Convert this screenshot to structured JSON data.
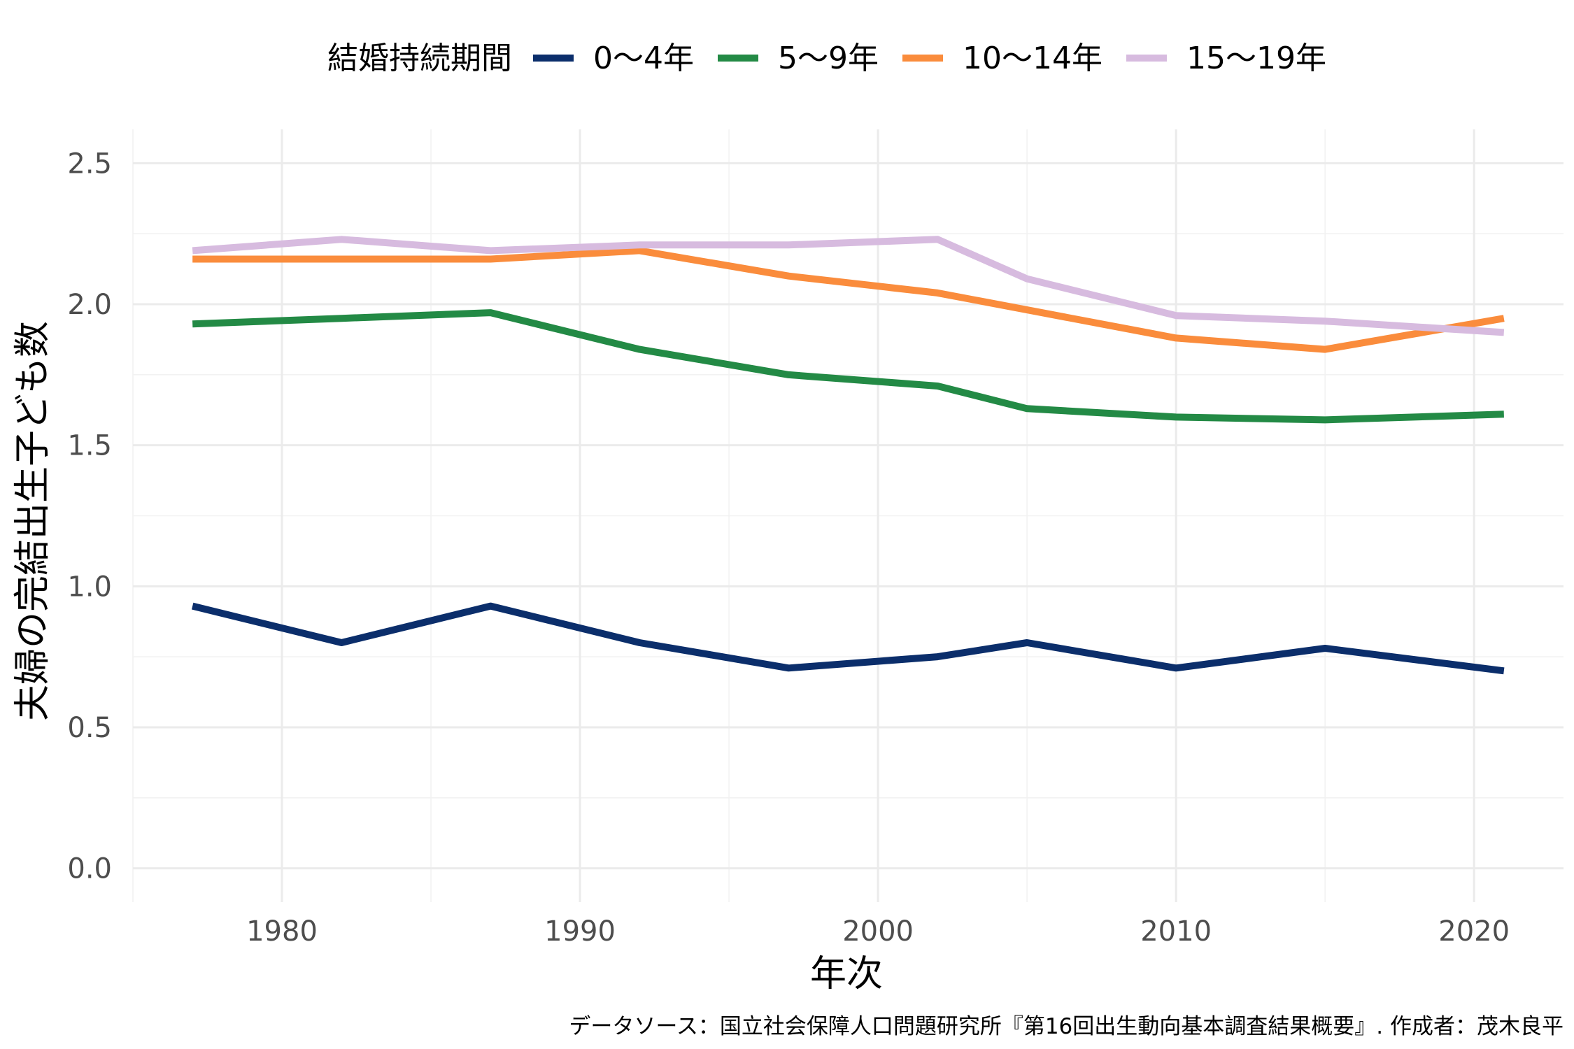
{
  "chart_data": {
    "type": "line",
    "xlabel": "年次",
    "ylabel": "夫婦の完結出生子ども数",
    "caption": "データソース：国立社会保障人口問題研究所『第16回出生動向基本調査結果概要』. 作成者：茂木良平",
    "legend": {
      "title": "結婚持続期間",
      "position": "top"
    },
    "xlim": [
      1975,
      2023
    ],
    "ylim": [
      -0.12,
      2.62
    ],
    "x_ticks": [
      "1980",
      "1990",
      "2000",
      "2010",
      "2020"
    ],
    "y_ticks": [
      "0.0",
      "0.5",
      "1.0",
      "1.5",
      "2.0",
      "2.5"
    ],
    "grid": true,
    "x": [
      1977,
      1982,
      1987,
      1992,
      1997,
      2002,
      2005,
      2010,
      2015,
      2021
    ],
    "series": [
      {
        "name": "0〜4年",
        "color": "#0b2e6b",
        "values": [
          0.93,
          0.8,
          0.93,
          0.8,
          0.71,
          0.75,
          0.8,
          0.71,
          0.78,
          0.7
        ]
      },
      {
        "name": "5〜9年",
        "color": "#238a45",
        "values": [
          1.93,
          1.95,
          1.97,
          1.84,
          1.75,
          1.71,
          1.63,
          1.6,
          1.59,
          1.61
        ]
      },
      {
        "name": "10〜14年",
        "color": "#fa8c3c",
        "values": [
          2.16,
          2.16,
          2.16,
          2.19,
          2.1,
          2.04,
          1.98,
          1.88,
          1.84,
          1.95
        ]
      },
      {
        "name": "15〜19年",
        "color": "#d7bbdf",
        "values": [
          2.19,
          2.23,
          2.19,
          2.21,
          2.21,
          2.23,
          2.09,
          1.96,
          1.94,
          1.9
        ]
      }
    ]
  }
}
